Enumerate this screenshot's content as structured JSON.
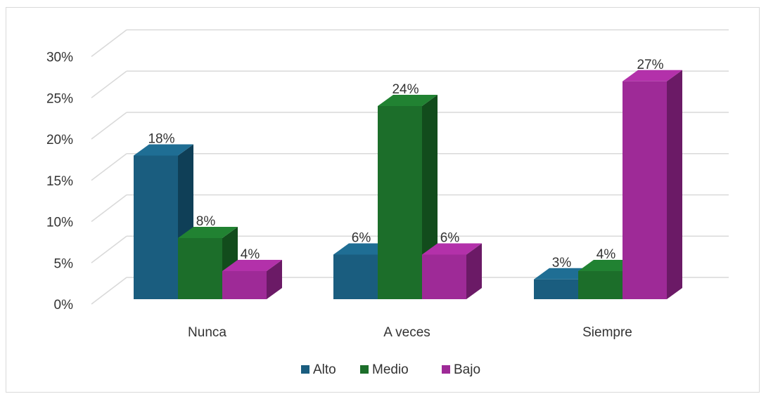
{
  "chart_data": {
    "type": "bar",
    "title": "",
    "xlabel": "",
    "ylabel": "",
    "categories": [
      "Nunca",
      "A veces",
      "Siempre"
    ],
    "series": [
      {
        "name": "Alto",
        "values": [
          18,
          6,
          3
        ],
        "labels": [
          "18%",
          "6%",
          "3%"
        ]
      },
      {
        "name": "Medio",
        "values": [
          8,
          24,
          4
        ],
        "labels": [
          "8%",
          "24%",
          "4%"
        ]
      },
      {
        "name": "Bajo",
        "values": [
          4,
          6,
          27
        ],
        "labels": [
          "4%",
          "6%",
          "27%"
        ]
      }
    ],
    "ylim": [
      0,
      30
    ],
    "yticks": [
      "0%",
      "5%",
      "10%",
      "15%",
      "20%",
      "25%",
      "30%"
    ],
    "grid": true,
    "legend_position": "bottom",
    "style": "3d-clustered-column"
  },
  "colors": {
    "Alto": {
      "front": "#1a5d7f",
      "side": "#0f3f57",
      "top": "#1f6e94"
    },
    "Medio": {
      "front": "#1c6e2a",
      "side": "#124c1c",
      "top": "#218232"
    },
    "Bajo": {
      "front": "#9e2a97",
      "side": "#6b1a66",
      "top": "#b331aa"
    },
    "grid": "#d9d9d9"
  }
}
